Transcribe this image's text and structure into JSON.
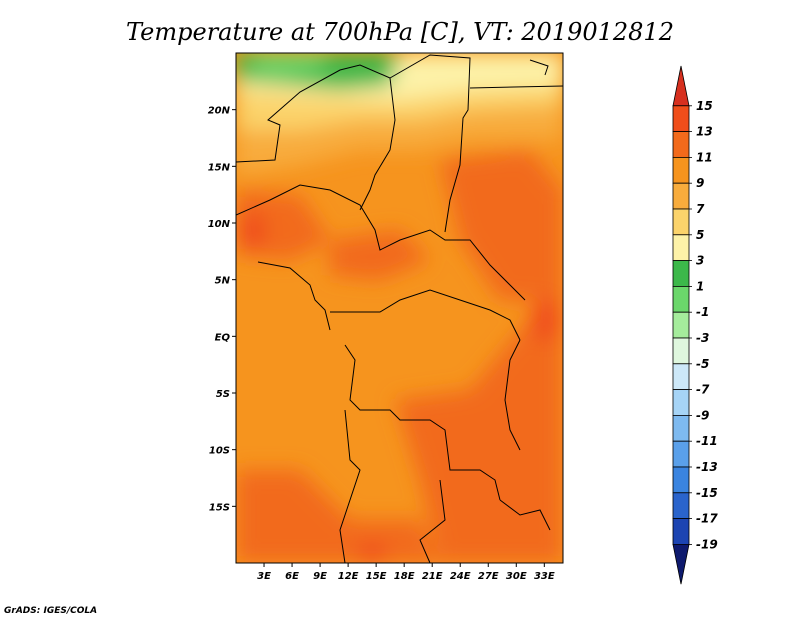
{
  "chart_data": {
    "type": "heatmap",
    "title": "Temperature at 700hPa [C], VT: 2019012812",
    "variable": "Temperature at 700hPa",
    "units": "C",
    "valid_time": "2019012812",
    "x_ticks": [
      "3E",
      "6E",
      "9E",
      "12E",
      "15E",
      "18E",
      "21E",
      "24E",
      "27E",
      "30E",
      "33E"
    ],
    "x_tick_values": [
      3,
      6,
      9,
      12,
      15,
      18,
      21,
      24,
      27,
      30,
      33
    ],
    "y_ticks": [
      "20N",
      "15N",
      "10N",
      "5N",
      "EQ",
      "5S",
      "10S",
      "15S"
    ],
    "y_tick_values": [
      20,
      15,
      10,
      5,
      0,
      -5,
      -10,
      -15
    ],
    "xlim": [
      0,
      35
    ],
    "ylim": [
      -20,
      25
    ],
    "colorbar": {
      "levels": [
        15,
        13,
        11,
        9,
        7,
        5,
        3,
        1,
        -1,
        -3,
        -5,
        -7,
        -9,
        -11,
        -13,
        -15,
        -17,
        -19
      ],
      "level_labels": [
        "15",
        "13",
        "11",
        "9",
        "7",
        "5",
        "3",
        "1",
        "-1",
        "-3",
        "-5",
        "-7",
        "-9",
        "-11",
        "-13",
        "-15",
        "-17",
        "-19"
      ],
      "colors": [
        "#d7301f",
        "#f04e1a",
        "#f26a1b",
        "#f6941e",
        "#f8ac3c",
        "#fbd36b",
        "#fdf2a8",
        "#3cb84a",
        "#6bd76b",
        "#a5ec9c",
        "#dff7de",
        "#cde8f8",
        "#a6d4f6",
        "#7ebaf0",
        "#5aa0ea",
        "#3a84e0",
        "#2a64cc",
        "#1c44b2",
        "#0e1a6e"
      ]
    },
    "credit": "GrADS: IGES/COLA"
  }
}
